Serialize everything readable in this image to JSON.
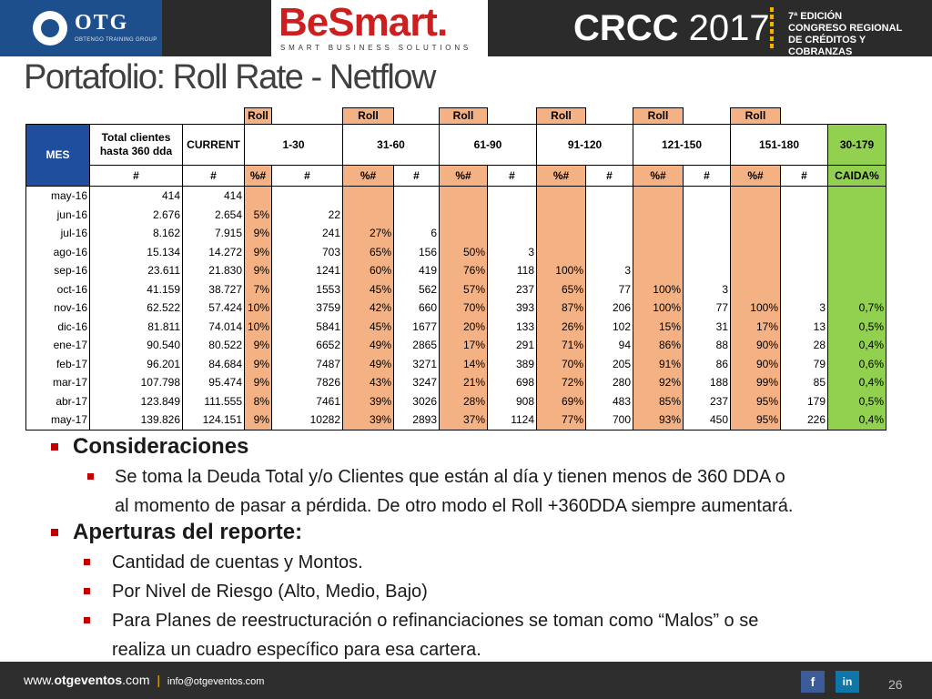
{
  "header": {
    "otg_logo": "OTG",
    "otg_subtitle": "OBTENGO TRAINING GROUP",
    "besmart_logo": "BeSmart.",
    "besmart_subtitle": "SMART BUSINESS SOLUTIONS",
    "crcc_name": "CRCC",
    "crcc_year": "2017",
    "crcc_line1": "7ª EDICIÓN",
    "crcc_line2": "CONGRESO REGIONAL",
    "crcc_line3": "DE CRÉDITOS Y COBRANZAS"
  },
  "title": "Portafolio: Roll Rate - Netflow",
  "table": {
    "roll_label": "Roll",
    "groups": {
      "mes": "MES",
      "total": "Total clientes hasta 360 dda",
      "current": "CURRENT",
      "g1": "1-30",
      "g2": "31-60",
      "g3": "61-90",
      "g4": "91-120",
      "g5": "121-150",
      "g6": "151-180",
      "g7": "30-179"
    },
    "sub": {
      "hash": "#",
      "pct": "%#",
      "caida": "CAIDA%"
    },
    "rows": [
      [
        "may-16",
        "414",
        "414",
        "",
        "",
        "",
        "",
        "",
        "",
        "",
        "",
        "",
        "",
        "",
        "",
        ""
      ],
      [
        "jun-16",
        "2.676",
        "2.654",
        "5%",
        "22",
        "",
        "",
        "",
        "",
        "",
        "",
        "",
        "",
        "",
        "",
        ""
      ],
      [
        "jul-16",
        "8.162",
        "7.915",
        "9%",
        "241",
        "27%",
        "6",
        "",
        "",
        "",
        "",
        "",
        "",
        "",
        "",
        ""
      ],
      [
        "ago-16",
        "15.134",
        "14.272",
        "9%",
        "703",
        "65%",
        "156",
        "50%",
        "3",
        "",
        "",
        "",
        "",
        "",
        "",
        ""
      ],
      [
        "sep-16",
        "23.611",
        "21.830",
        "9%",
        "1241",
        "60%",
        "419",
        "76%",
        "118",
        "100%",
        "3",
        "",
        "",
        "",
        "",
        ""
      ],
      [
        "oct-16",
        "41.159",
        "38.727",
        "7%",
        "1553",
        "45%",
        "562",
        "57%",
        "237",
        "65%",
        "77",
        "100%",
        "3",
        "",
        "",
        ""
      ],
      [
        "nov-16",
        "62.522",
        "57.424",
        "10%",
        "3759",
        "42%",
        "660",
        "70%",
        "393",
        "87%",
        "206",
        "100%",
        "77",
        "100%",
        "3",
        "0,7%"
      ],
      [
        "dic-16",
        "81.811",
        "74.014",
        "10%",
        "5841",
        "45%",
        "1677",
        "20%",
        "133",
        "26%",
        "102",
        "15%",
        "31",
        "17%",
        "13",
        "0,5%"
      ],
      [
        "ene-17",
        "90.540",
        "80.522",
        "9%",
        "6652",
        "49%",
        "2865",
        "17%",
        "291",
        "71%",
        "94",
        "86%",
        "88",
        "90%",
        "28",
        "0,4%"
      ],
      [
        "feb-17",
        "96.201",
        "84.684",
        "9%",
        "7487",
        "49%",
        "3271",
        "14%",
        "389",
        "70%",
        "205",
        "91%",
        "86",
        "90%",
        "79",
        "0,6%"
      ],
      [
        "mar-17",
        "107.798",
        "95.474",
        "9%",
        "7826",
        "43%",
        "3247",
        "21%",
        "698",
        "72%",
        "280",
        "92%",
        "188",
        "99%",
        "85",
        "0,4%"
      ],
      [
        "abr-17",
        "123.849",
        "111.555",
        "8%",
        "7461",
        "39%",
        "3026",
        "28%",
        "908",
        "69%",
        "483",
        "85%",
        "237",
        "95%",
        "179",
        "0,5%"
      ],
      [
        "may-17",
        "139.826",
        "124.151",
        "9%",
        "10282",
        "39%",
        "2893",
        "37%",
        "1124",
        "77%",
        "700",
        "93%",
        "450",
        "95%",
        "226",
        "0,4%"
      ]
    ]
  },
  "bullets": {
    "consideraciones": "Consideraciones",
    "consideraciones_text_1": "Se toma la Deuda Total y/o Clientes que están al día y tienen menos de 360 DDA o",
    "consideraciones_text_2": "al momento de pasar a pérdida. De otro modo el Roll +360DDA siempre aumentará.",
    "aperturas": "Aperturas del reporte:",
    "item1": "Cantidad de cuentas y Montos.",
    "item2": "Por Nivel de Riesgo (Alto, Medio, Bajo)",
    "item3_1": "Para Planes de reestructuración o refinanciaciones se toman como “Malos” o se",
    "item3_2": "realiza un cuadro específico para esa cartera."
  },
  "footer": {
    "web_prefix": "www.",
    "web_bold": "otgeventos",
    "web_suffix": ".com",
    "separator": "|",
    "email": "info@otgeventos.com",
    "facebook_glyph": "f",
    "linkedin_glyph": "in",
    "page_number": "26"
  },
  "colors": {
    "header_bg": "#2b2b2b",
    "otg_blue": "#1c4f8c",
    "besmart_red": "#cc1f1f",
    "mes_header_blue": "#1f4e9c",
    "roll_orange": "#f4b183",
    "caida_green": "#92d050",
    "bullet_red": "#c00000"
  }
}
